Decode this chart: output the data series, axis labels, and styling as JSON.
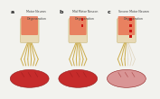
{
  "panels": [
    {
      "label": "a",
      "title_line1": "Motor Neuron",
      "title_line2": "Degeneration",
      "spinal_degeneration": 0.0,
      "muscle_denervation": 0.0,
      "dot_marks": [],
      "nerve_pale_count": 0
    },
    {
      "label": "b",
      "title_line1": "Mid Motor Neuron",
      "title_line2": "Degeneration",
      "spinal_degeneration": 0.5,
      "muscle_denervation": 0.0,
      "dot_marks": [
        0,
        1
      ],
      "nerve_pale_count": 0
    },
    {
      "label": "c",
      "title_line1": "Severe Motor Neuron",
      "title_line2": "Degeneration",
      "spinal_degeneration": 1.0,
      "muscle_denervation": 0.5,
      "dot_marks": [
        0,
        1,
        2,
        3
      ],
      "nerve_pale_count": 3
    }
  ],
  "bg_color": "#f2f2ee",
  "spine_body_color": "#e8d9b5",
  "spine_edge_color": "#c8b87a",
  "spine_red_color": "#e87555",
  "nerve_gold_color": "#c8a53a",
  "nerve_pale_color": "#d8c8a8",
  "muscle_red_color": "#c42020",
  "muscle_pale_color": "#d89090",
  "muscle_edge_color": "#8b1515",
  "dot_color": "#cc1111",
  "label_color": "#222222",
  "title_color": "#444444",
  "panel_bg": "#ffffff"
}
